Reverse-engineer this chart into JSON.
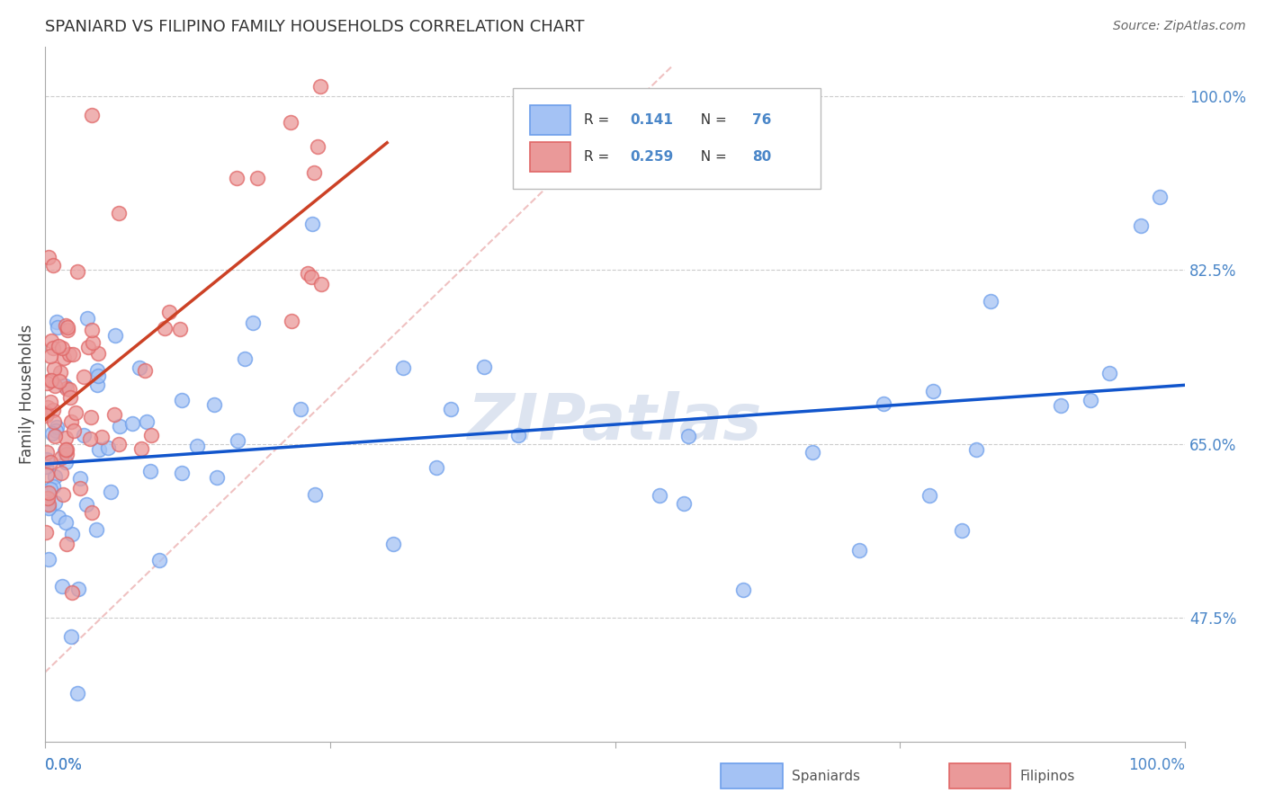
{
  "title": "SPANIARD VS FILIPINO FAMILY HOUSEHOLDS CORRELATION CHART",
  "source": "Source: ZipAtlas.com",
  "ylabel": "Family Households",
  "r_spaniard": 0.141,
  "n_spaniard": 76,
  "r_filipino": 0.259,
  "n_filipino": 80,
  "ytick_vals": [
    0.475,
    0.65,
    0.825,
    1.0
  ],
  "ytick_labels": [
    "47.5%",
    "65.0%",
    "82.5%",
    "100.0%"
  ],
  "xlim": [
    0.0,
    1.0
  ],
  "ylim": [
    0.35,
    1.05
  ],
  "blue_fill": "#a4c2f4",
  "blue_edge": "#6d9eeb",
  "pink_fill": "#ea9999",
  "pink_edge": "#e06666",
  "blue_line_color": "#1155cc",
  "pink_line_color": "#cc4125",
  "dashed_color": "#dd7777",
  "watermark_color": "#dde4f0",
  "title_color": "#333333",
  "axis_label_color": "#4a86c8",
  "legend_text_color": "#333333",
  "source_color": "#666666"
}
